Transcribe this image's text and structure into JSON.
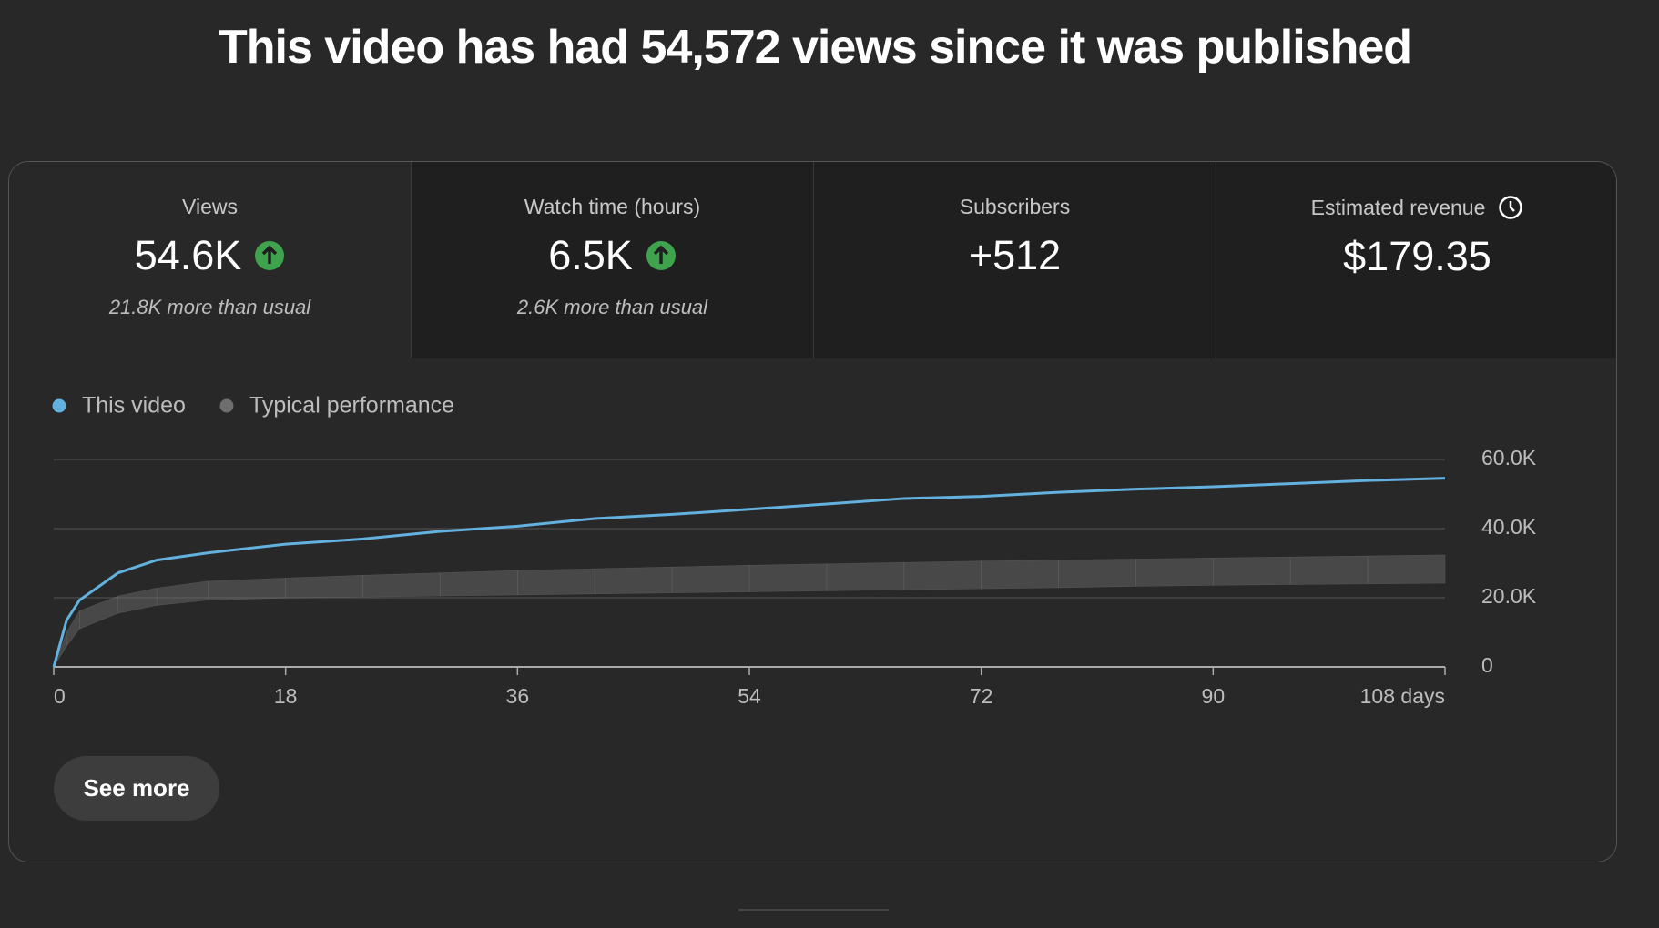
{
  "header": {
    "title": "This video has had 54,572 views since it was published"
  },
  "metrics": [
    {
      "label": "Views",
      "value": "54.6K",
      "note": "21.8K more than usual"
    },
    {
      "label": "Watch time (hours)",
      "value": "6.5K",
      "note": "2.6K more than usual"
    },
    {
      "label": "Subscribers",
      "value": "+512"
    },
    {
      "label": "Estimated revenue",
      "value": "$179.35"
    }
  ],
  "chart_data": {
    "type": "line",
    "x": [
      0,
      1,
      2,
      5,
      8,
      12,
      18,
      24,
      30,
      36,
      42,
      48,
      54,
      60,
      66,
      72,
      78,
      84,
      90,
      96,
      102,
      108
    ],
    "xlim": [
      0,
      108
    ],
    "xticks": [
      0,
      18,
      36,
      54,
      72,
      90,
      {
        "value": 108,
        "label": "108 days"
      }
    ],
    "ylim": [
      0,
      60000
    ],
    "yticks": [
      0,
      {
        "value": 20000,
        "label": "20.0K"
      },
      {
        "value": 40000,
        "label": "40.0K"
      },
      {
        "value": 60000,
        "label": "60.0K"
      }
    ],
    "grid": true,
    "series": [
      {
        "name": "This video",
        "color": "#62b1de",
        "values": [
          0,
          13500,
          19300,
          27200,
          30900,
          33000,
          35500,
          37000,
          39200,
          40700,
          42900,
          44100,
          45600,
          47100,
          48700,
          49300,
          50500,
          51400,
          52100,
          53000,
          53900,
          54572
        ]
      },
      {
        "name": "Typical performance",
        "color": "#6e6e6e",
        "lower": [
          0,
          6000,
          11000,
          15500,
          17800,
          19300,
          19900,
          20200,
          20500,
          20800,
          21100,
          21400,
          21700,
          22000,
          22300,
          22600,
          22900,
          23300,
          23600,
          23800,
          24000,
          24200
        ],
        "upper": [
          0,
          10000,
          16200,
          20500,
          22800,
          24800,
          25700,
          26500,
          27200,
          27900,
          28400,
          28900,
          29400,
          29800,
          30200,
          30600,
          30900,
          31200,
          31500,
          31800,
          32100,
          32400
        ]
      }
    ]
  },
  "button": {
    "label": "See more"
  }
}
